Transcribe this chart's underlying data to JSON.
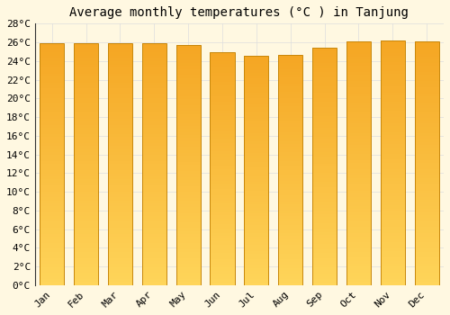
{
  "title": "Average monthly temperatures (°C ) in Tanjung",
  "months": [
    "Jan",
    "Feb",
    "Mar",
    "Apr",
    "May",
    "Jun",
    "Jul",
    "Aug",
    "Sep",
    "Oct",
    "Nov",
    "Dec"
  ],
  "temperatures": [
    25.9,
    25.9,
    25.9,
    25.9,
    25.7,
    24.9,
    24.6,
    24.7,
    25.4,
    26.1,
    26.2,
    26.1
  ],
  "ylim": [
    0,
    28
  ],
  "yticks": [
    0,
    2,
    4,
    6,
    8,
    10,
    12,
    14,
    16,
    18,
    20,
    22,
    24,
    26,
    28
  ],
  "bar_color_top": "#F5A623",
  "bar_color_bottom": "#FFD55A",
  "background_color": "#FFF8E1",
  "grid_color": "#DDDDDD",
  "title_fontsize": 10,
  "tick_fontsize": 8,
  "font_family": "monospace",
  "bar_width": 0.72,
  "bar_edge_color": "#C8870A",
  "bar_edge_linewidth": 0.7
}
